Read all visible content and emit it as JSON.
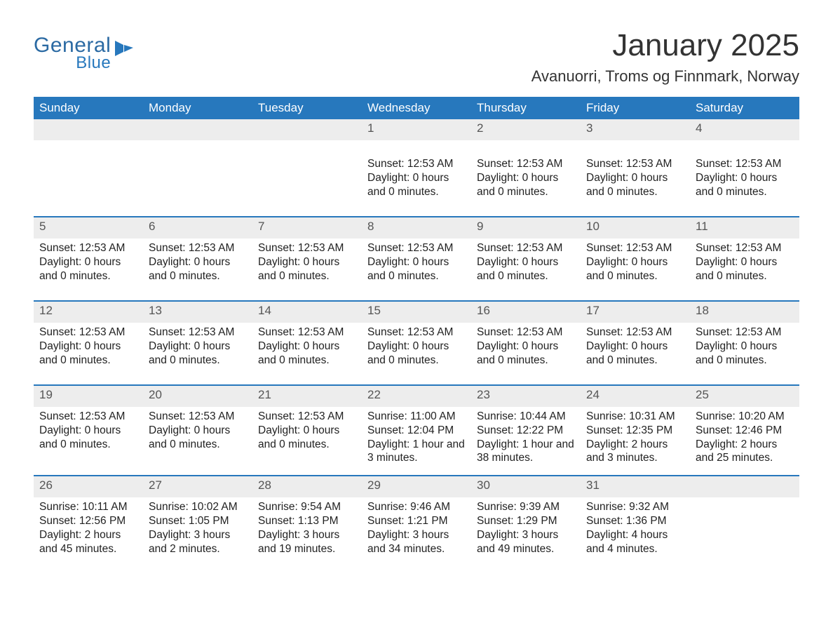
{
  "logo": {
    "general": "General",
    "blue": "Blue"
  },
  "title": "January 2025",
  "location": "Avanuorri, Troms og Finnmark, Norway",
  "colors": {
    "brand_blue": "#2778bd",
    "logo_blue": "#2b6aa3",
    "daynum_bg": "#ededed",
    "text": "#333333",
    "background": "#ffffff"
  },
  "day_names": [
    "Sunday",
    "Monday",
    "Tuesday",
    "Wednesday",
    "Thursday",
    "Friday",
    "Saturday"
  ],
  "weeks": [
    [
      {
        "n": "",
        "lines": []
      },
      {
        "n": "",
        "lines": []
      },
      {
        "n": "",
        "lines": []
      },
      {
        "n": "1",
        "lines": [
          "Sunset: 12:53 AM",
          "Daylight: 0 hours and 0 minutes."
        ]
      },
      {
        "n": "2",
        "lines": [
          "Sunset: 12:53 AM",
          "Daylight: 0 hours and 0 minutes."
        ]
      },
      {
        "n": "3",
        "lines": [
          "Sunset: 12:53 AM",
          "Daylight: 0 hours and 0 minutes."
        ]
      },
      {
        "n": "4",
        "lines": [
          "Sunset: 12:53 AM",
          "Daylight: 0 hours and 0 minutes."
        ]
      }
    ],
    [
      {
        "n": "5",
        "lines": [
          "Sunset: 12:53 AM",
          "Daylight: 0 hours and 0 minutes."
        ]
      },
      {
        "n": "6",
        "lines": [
          "Sunset: 12:53 AM",
          "Daylight: 0 hours and 0 minutes."
        ]
      },
      {
        "n": "7",
        "lines": [
          "Sunset: 12:53 AM",
          "Daylight: 0 hours and 0 minutes."
        ]
      },
      {
        "n": "8",
        "lines": [
          "Sunset: 12:53 AM",
          "Daylight: 0 hours and 0 minutes."
        ]
      },
      {
        "n": "9",
        "lines": [
          "Sunset: 12:53 AM",
          "Daylight: 0 hours and 0 minutes."
        ]
      },
      {
        "n": "10",
        "lines": [
          "Sunset: 12:53 AM",
          "Daylight: 0 hours and 0 minutes."
        ]
      },
      {
        "n": "11",
        "lines": [
          "Sunset: 12:53 AM",
          "Daylight: 0 hours and 0 minutes."
        ]
      }
    ],
    [
      {
        "n": "12",
        "lines": [
          "Sunset: 12:53 AM",
          "Daylight: 0 hours and 0 minutes."
        ]
      },
      {
        "n": "13",
        "lines": [
          "Sunset: 12:53 AM",
          "Daylight: 0 hours and 0 minutes."
        ]
      },
      {
        "n": "14",
        "lines": [
          "Sunset: 12:53 AM",
          "Daylight: 0 hours and 0 minutes."
        ]
      },
      {
        "n": "15",
        "lines": [
          "Sunset: 12:53 AM",
          "Daylight: 0 hours and 0 minutes."
        ]
      },
      {
        "n": "16",
        "lines": [
          "Sunset: 12:53 AM",
          "Daylight: 0 hours and 0 minutes."
        ]
      },
      {
        "n": "17",
        "lines": [
          "Sunset: 12:53 AM",
          "Daylight: 0 hours and 0 minutes."
        ]
      },
      {
        "n": "18",
        "lines": [
          "Sunset: 12:53 AM",
          "Daylight: 0 hours and 0 minutes."
        ]
      }
    ],
    [
      {
        "n": "19",
        "lines": [
          "Sunset: 12:53 AM",
          "Daylight: 0 hours and 0 minutes."
        ]
      },
      {
        "n": "20",
        "lines": [
          "Sunset: 12:53 AM",
          "Daylight: 0 hours and 0 minutes."
        ]
      },
      {
        "n": "21",
        "lines": [
          "Sunset: 12:53 AM",
          "Daylight: 0 hours and 0 minutes."
        ]
      },
      {
        "n": "22",
        "lines": [
          "Sunrise: 11:00 AM",
          "Sunset: 12:04 PM",
          "Daylight: 1 hour and 3 minutes."
        ]
      },
      {
        "n": "23",
        "lines": [
          "Sunrise: 10:44 AM",
          "Sunset: 12:22 PM",
          "Daylight: 1 hour and 38 minutes."
        ]
      },
      {
        "n": "24",
        "lines": [
          "Sunrise: 10:31 AM",
          "Sunset: 12:35 PM",
          "Daylight: 2 hours and 3 minutes."
        ]
      },
      {
        "n": "25",
        "lines": [
          "Sunrise: 10:20 AM",
          "Sunset: 12:46 PM",
          "Daylight: 2 hours and 25 minutes."
        ]
      }
    ],
    [
      {
        "n": "26",
        "lines": [
          "Sunrise: 10:11 AM",
          "Sunset: 12:56 PM",
          "Daylight: 2 hours and 45 minutes."
        ]
      },
      {
        "n": "27",
        "lines": [
          "Sunrise: 10:02 AM",
          "Sunset: 1:05 PM",
          "Daylight: 3 hours and 2 minutes."
        ]
      },
      {
        "n": "28",
        "lines": [
          "Sunrise: 9:54 AM",
          "Sunset: 1:13 PM",
          "Daylight: 3 hours and 19 minutes."
        ]
      },
      {
        "n": "29",
        "lines": [
          "Sunrise: 9:46 AM",
          "Sunset: 1:21 PM",
          "Daylight: 3 hours and 34 minutes."
        ]
      },
      {
        "n": "30",
        "lines": [
          "Sunrise: 9:39 AM",
          "Sunset: 1:29 PM",
          "Daylight: 3 hours and 49 minutes."
        ]
      },
      {
        "n": "31",
        "lines": [
          "Sunrise: 9:32 AM",
          "Sunset: 1:36 PM",
          "Daylight: 4 hours and 4 minutes."
        ]
      },
      {
        "n": "",
        "lines": []
      }
    ]
  ]
}
